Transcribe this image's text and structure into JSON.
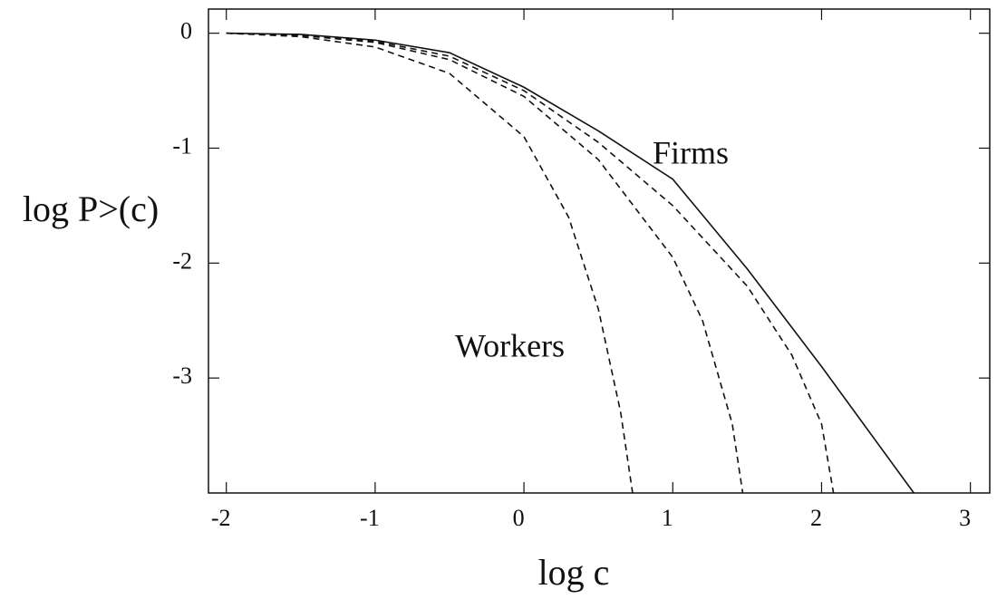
{
  "chart_data": {
    "type": "line",
    "xlabel": "log c",
    "ylabel": "log P>(c)",
    "xlim": [
      -2.12,
      3.13
    ],
    "ylim": [
      -4,
      0.21
    ],
    "xticks": [
      -2,
      -1,
      0,
      1,
      2,
      3
    ],
    "yticks": [
      0,
      -1,
      -2,
      -3
    ],
    "annotations": [
      "Firms",
      "Workers"
    ],
    "series": [
      {
        "color": "#111111",
        "dash": false,
        "x": [
          -2,
          -1.5,
          -1,
          -0.5,
          0,
          0.5,
          1,
          1.5,
          2,
          2.62
        ],
        "values": [
          0,
          -0.01,
          -0.06,
          -0.17,
          -0.47,
          -0.85,
          -1.27,
          -2.05,
          -2.9,
          -4
        ]
      },
      {
        "color": "#111111",
        "dash": true,
        "x": [
          -2,
          -1.5,
          -1,
          -0.5,
          0,
          0.5,
          1,
          1.5,
          1.8,
          2,
          2.08
        ],
        "values": [
          0,
          -0.02,
          -0.07,
          -0.2,
          -0.5,
          -0.95,
          -1.5,
          -2.2,
          -2.8,
          -3.4,
          -4
        ]
      },
      {
        "color": "#111111",
        "dash": true,
        "x": [
          -2,
          -1.5,
          -1,
          -0.5,
          0,
          0.5,
          1,
          1.2,
          1.4,
          1.47
        ],
        "values": [
          0,
          -0.02,
          -0.08,
          -0.23,
          -0.55,
          -1.1,
          -1.95,
          -2.5,
          -3.4,
          -4
        ]
      },
      {
        "color": "#111111",
        "dash": true,
        "x": [
          -2,
          -1.5,
          -1,
          -0.5,
          0,
          0.3,
          0.5,
          0.65,
          0.73
        ],
        "values": [
          0,
          -0.03,
          -0.12,
          -0.35,
          -0.9,
          -1.6,
          -2.4,
          -3.3,
          -4
        ]
      }
    ]
  }
}
